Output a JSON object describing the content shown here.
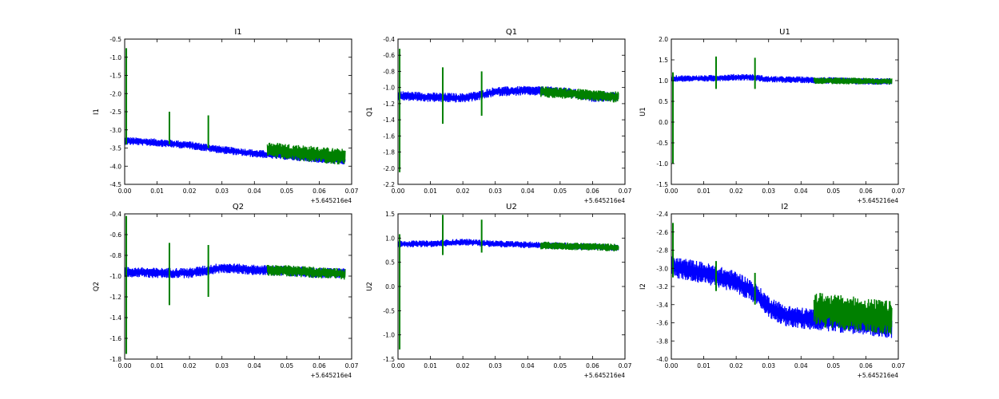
{
  "figure": {
    "colors": {
      "series_blue": "#0000ff",
      "series_green": "#008000",
      "axes": "#000000",
      "background": "#ffffff"
    }
  },
  "chart_data": [
    {
      "type": "line",
      "title": "I1",
      "ylabel": "I1",
      "xlabel": "",
      "x_offset_label": "+5.645216e4",
      "xlim": [
        0.0,
        0.07
      ],
      "ylim": [
        -4.5,
        -0.5
      ],
      "xticks": [
        "0.00",
        "0.01",
        "0.02",
        "0.03",
        "0.04",
        "0.05",
        "0.06",
        "0.07"
      ],
      "yticks": [
        "-0.5",
        "-1.0",
        "-1.5",
        "-2.0",
        "-2.5",
        "-3.0",
        "-3.5",
        "-4.0",
        "-4.5"
      ],
      "series": [
        {
          "color": "#0000ff",
          "x": [
            0.0,
            0.01,
            0.02,
            0.03,
            0.04,
            0.05,
            0.06,
            0.068
          ],
          "y": [
            -3.3,
            -3.35,
            -3.42,
            -3.55,
            -3.65,
            -3.72,
            -3.8,
            -3.85
          ],
          "band": 0.22
        },
        {
          "color": "#008000",
          "x": [
            0.044,
            0.068
          ],
          "y": [
            -3.55,
            -3.75
          ],
          "band": 0.45,
          "spikes": [
            {
              "x": 0.0005,
              "ylo": -3.4,
              "yhi": -0.75
            },
            {
              "x": 0.0138,
              "ylo": -3.4,
              "yhi": -2.5
            },
            {
              "x": 0.0258,
              "ylo": -3.5,
              "yhi": -2.6
            }
          ]
        }
      ]
    },
    {
      "type": "line",
      "title": "Q1",
      "ylabel": "Q1",
      "xlabel": "",
      "x_offset_label": "+5.645216e4",
      "xlim": [
        0.0,
        0.07
      ],
      "ylim": [
        -2.2,
        -0.4
      ],
      "xticks": [
        "0.00",
        "0.01",
        "0.02",
        "0.03",
        "0.04",
        "0.05",
        "0.06",
        "0.07"
      ],
      "yticks": [
        "-0.4",
        "-0.6",
        "-0.8",
        "-1.0",
        "-1.2",
        "-1.4",
        "-1.6",
        "-1.8",
        "-2.0",
        "-2.2"
      ],
      "series": [
        {
          "color": "#0000ff",
          "x": [
            0.0,
            0.01,
            0.02,
            0.025,
            0.03,
            0.04,
            0.05,
            0.055,
            0.06,
            0.068
          ],
          "y": [
            -1.1,
            -1.12,
            -1.13,
            -1.1,
            -1.05,
            -1.04,
            -1.05,
            -1.08,
            -1.12,
            -1.11
          ],
          "band": 0.12
        },
        {
          "color": "#008000",
          "x": [
            0.044,
            0.068
          ],
          "y": [
            -1.05,
            -1.12
          ],
          "band": 0.14,
          "spikes": [
            {
              "x": 0.0005,
              "ylo": -2.05,
              "yhi": -0.52
            },
            {
              "x": 0.0138,
              "ylo": -1.45,
              "yhi": -0.75
            },
            {
              "x": 0.0258,
              "ylo": -1.35,
              "yhi": -0.8
            }
          ]
        }
      ]
    },
    {
      "type": "line",
      "title": "U1",
      "ylabel": "U1",
      "xlabel": "",
      "x_offset_label": "+5.645216e4",
      "xlim": [
        0.0,
        0.07
      ],
      "ylim": [
        -1.5,
        2.0
      ],
      "xticks": [
        "0.00",
        "0.01",
        "0.02",
        "0.03",
        "0.04",
        "0.05",
        "0.06",
        "0.07"
      ],
      "yticks": [
        "2.0",
        "1.5",
        "1.0",
        "0.5",
        "0.0",
        "-0.5",
        "-1.0",
        "-1.5"
      ],
      "series": [
        {
          "color": "#0000ff",
          "x": [
            0.0,
            0.01,
            0.02,
            0.025,
            0.03,
            0.04,
            0.05,
            0.06,
            0.068
          ],
          "y": [
            1.05,
            1.05,
            1.08,
            1.08,
            1.03,
            1.02,
            1.0,
            0.98,
            0.98
          ],
          "band": 0.16
        },
        {
          "color": "#008000",
          "x": [
            0.044,
            0.068
          ],
          "y": [
            1.0,
            0.98
          ],
          "band": 0.16,
          "spikes": [
            {
              "x": 0.0005,
              "ylo": -1.0,
              "yhi": 1.2
            },
            {
              "x": 0.0138,
              "ylo": 0.8,
              "yhi": 1.58
            },
            {
              "x": 0.0258,
              "ylo": 0.8,
              "yhi": 1.55
            }
          ]
        }
      ]
    },
    {
      "type": "line",
      "title": "Q2",
      "ylabel": "Q2",
      "xlabel": "",
      "x_offset_label": "+5.645216e4",
      "xlim": [
        0.0,
        0.07
      ],
      "ylim": [
        -1.8,
        -0.4
      ],
      "xticks": [
        "0.00",
        "0.01",
        "0.02",
        "0.03",
        "0.04",
        "0.05",
        "0.06",
        "0.07"
      ],
      "yticks": [
        "-0.4",
        "-0.6",
        "-0.8",
        "-1.0",
        "-1.2",
        "-1.4",
        "-1.6",
        "-1.8"
      ],
      "series": [
        {
          "color": "#0000ff",
          "x": [
            0.0,
            0.01,
            0.02,
            0.03,
            0.04,
            0.05,
            0.06,
            0.068
          ],
          "y": [
            -0.96,
            -0.97,
            -0.97,
            -0.92,
            -0.94,
            -0.95,
            -0.97,
            -0.97
          ],
          "band": 0.1
        },
        {
          "color": "#008000",
          "x": [
            0.044,
            0.068
          ],
          "y": [
            -0.94,
            -0.98
          ],
          "band": 0.11,
          "spikes": [
            {
              "x": 0.0005,
              "ylo": -1.75,
              "yhi": -0.42
            },
            {
              "x": 0.0138,
              "ylo": -1.28,
              "yhi": -0.68
            },
            {
              "x": 0.0258,
              "ylo": -1.2,
              "yhi": -0.7
            }
          ]
        }
      ]
    },
    {
      "type": "line",
      "title": "U2",
      "ylabel": "U2",
      "xlabel": "",
      "x_offset_label": "+5.645216e4",
      "xlim": [
        0.0,
        0.07
      ],
      "ylim": [
        -1.5,
        1.5
      ],
      "xticks": [
        "0.00",
        "0.01",
        "0.02",
        "0.03",
        "0.04",
        "0.05",
        "0.06",
        "0.07"
      ],
      "yticks": [
        "1.5",
        "1.0",
        "0.5",
        "0.0",
        "-0.5",
        "-1.0",
        "-1.5"
      ],
      "series": [
        {
          "color": "#0000ff",
          "x": [
            0.0,
            0.01,
            0.02,
            0.03,
            0.04,
            0.05,
            0.06,
            0.068
          ],
          "y": [
            0.88,
            0.88,
            0.92,
            0.88,
            0.86,
            0.84,
            0.82,
            0.8
          ],
          "band": 0.14
        },
        {
          "color": "#008000",
          "x": [
            0.044,
            0.068
          ],
          "y": [
            0.85,
            0.8
          ],
          "band": 0.16,
          "spikes": [
            {
              "x": 0.0005,
              "ylo": -1.3,
              "yhi": 1.08
            },
            {
              "x": 0.0138,
              "ylo": 0.65,
              "yhi": 1.48
            },
            {
              "x": 0.0258,
              "ylo": 0.7,
              "yhi": 1.38
            }
          ]
        }
      ]
    },
    {
      "type": "line",
      "title": "I2",
      "ylabel": "I2",
      "xlabel": "",
      "x_offset_label": "+5.645216e4",
      "xlim": [
        0.0,
        0.07
      ],
      "ylim": [
        -4.0,
        -2.4
      ],
      "xticks": [
        "0.00",
        "0.01",
        "0.02",
        "0.03",
        "0.04",
        "0.05",
        "0.06",
        "0.07"
      ],
      "yticks": [
        "-2.4",
        "-2.6",
        "-2.8",
        "-3.0",
        "-3.2",
        "-3.4",
        "-3.6",
        "-3.8",
        "-4.0"
      ],
      "series": [
        {
          "color": "#0000ff",
          "x": [
            0.0,
            0.01,
            0.02,
            0.025,
            0.03,
            0.035,
            0.04,
            0.05,
            0.06,
            0.068
          ],
          "y": [
            -2.98,
            -3.05,
            -3.15,
            -3.25,
            -3.42,
            -3.52,
            -3.55,
            -3.58,
            -3.62,
            -3.65
          ],
          "band": 0.24
        },
        {
          "color": "#008000",
          "x": [
            0.044,
            0.068
          ],
          "y": [
            -3.45,
            -3.55
          ],
          "band": 0.38,
          "spikes": [
            {
              "x": 0.0005,
              "ylo": -3.1,
              "yhi": -2.5
            },
            {
              "x": 0.0138,
              "ylo": -3.25,
              "yhi": -2.92
            },
            {
              "x": 0.0258,
              "ylo": -3.4,
              "yhi": -3.05
            }
          ]
        }
      ]
    }
  ]
}
